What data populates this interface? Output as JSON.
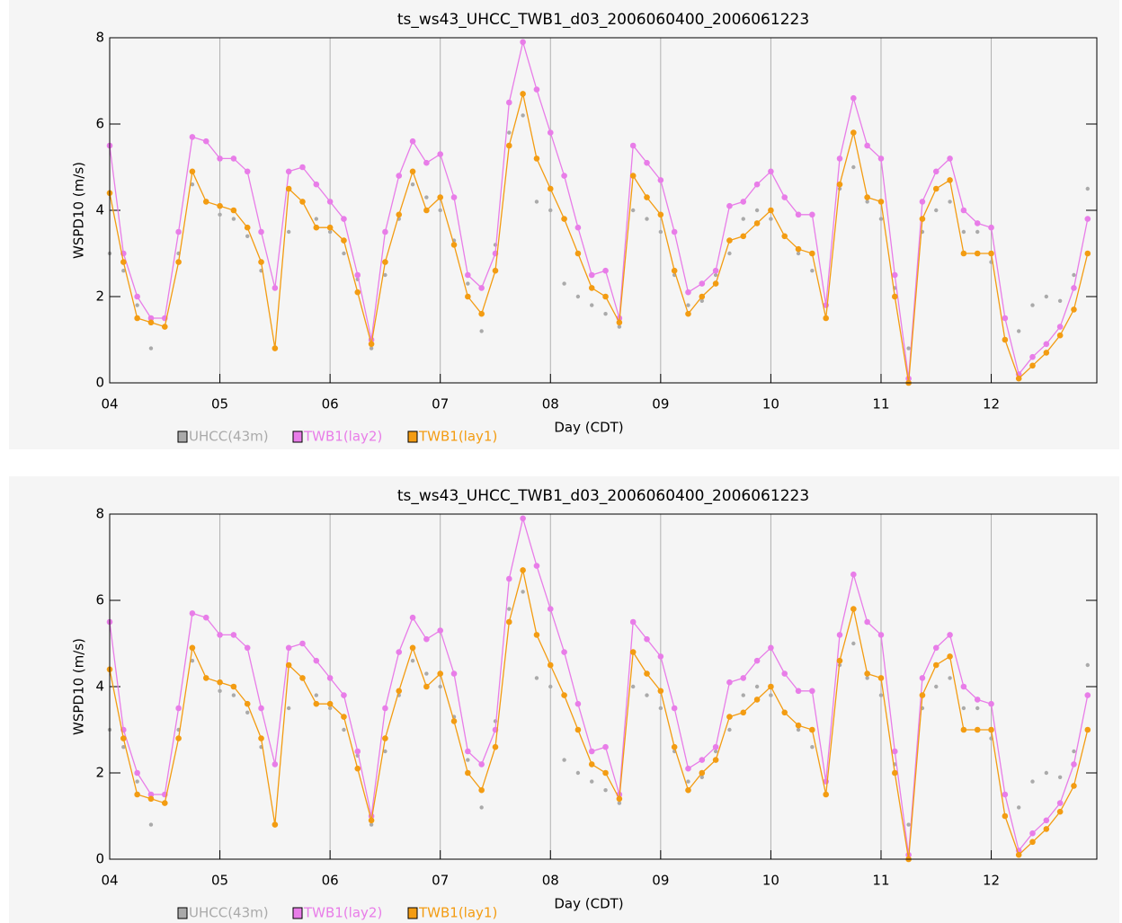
{
  "chart_data": [
    {
      "type": "line",
      "title": "ts_ws43_UHCC_TWB1_d03_2006060400_2006061223",
      "xlabel": "Day (CDT)",
      "ylabel": "WSPD10 (m/s)",
      "xlim": [
        4,
        12.9583
      ],
      "ylim": [
        0,
        8
      ],
      "xticks": [
        {
          "value": 4,
          "label": "04"
        },
        {
          "value": 5,
          "label": "05"
        },
        {
          "value": 6,
          "label": "06"
        },
        {
          "value": 7,
          "label": "07"
        },
        {
          "value": 8,
          "label": "08"
        },
        {
          "value": 9,
          "label": "09"
        },
        {
          "value": 10,
          "label": "10"
        },
        {
          "value": 11,
          "label": "11"
        },
        {
          "value": 12,
          "label": "12"
        }
      ],
      "yticks": [
        0,
        2,
        4,
        6,
        8
      ],
      "grid": "x",
      "x": [
        4,
        4.125,
        4.25,
        4.375,
        4.5,
        4.625,
        4.75,
        4.875,
        5,
        5.125,
        5.25,
        5.375,
        5.5,
        5.625,
        5.75,
        5.875,
        6,
        6.125,
        6.25,
        6.375,
        6.5,
        6.625,
        6.75,
        6.875,
        7,
        7.125,
        7.25,
        7.375,
        7.5,
        7.625,
        7.75,
        7.875,
        8,
        8.125,
        8.25,
        8.375,
        8.5,
        8.625,
        8.75,
        8.875,
        9,
        9.125,
        9.25,
        9.375,
        9.5,
        9.625,
        9.75,
        9.875,
        10,
        10.125,
        10.25,
        10.375,
        10.5,
        10.625,
        10.75,
        10.875,
        11,
        11.125,
        11.25,
        11.375,
        11.5,
        11.625,
        11.75,
        11.875,
        12,
        12.125,
        12.25,
        12.375,
        12.5,
        12.625,
        12.75,
        12.875
      ],
      "series": [
        {
          "name": "UHCC(43m)",
          "color": "#aaaaaa",
          "mode": "markers",
          "values": [
            3.0,
            2.6,
            1.8,
            0.8,
            1.5,
            3.0,
            4.6,
            4.2,
            3.9,
            3.8,
            3.4,
            2.6,
            0.8,
            3.5,
            4.2,
            3.8,
            3.5,
            3.0,
            2.4,
            0.8,
            2.5,
            3.8,
            4.6,
            4.3,
            4.0,
            3.3,
            2.3,
            1.2,
            3.2,
            5.8,
            6.2,
            4.2,
            4.0,
            2.3,
            2.0,
            1.8,
            1.6,
            1.3,
            4.0,
            3.8,
            3.5,
            2.5,
            1.8,
            1.9,
            2.5,
            3.0,
            3.8,
            4.0,
            3.8,
            3.4,
            3.0,
            2.6,
            1.5,
            4.5,
            5.0,
            4.2,
            3.8,
            2.2,
            0.8,
            3.5,
            4.0,
            4.2,
            3.5,
            3.5,
            2.8,
            1.5,
            1.2,
            1.8,
            2.0,
            1.9,
            2.5,
            4.5
          ]
        },
        {
          "name": "TWB1(lay2)",
          "color": "#e87de8",
          "mode": "lines+markers",
          "values": [
            5.5,
            3.0,
            2.0,
            1.5,
            1.5,
            3.5,
            5.7,
            5.6,
            5.2,
            5.2,
            4.9,
            3.5,
            2.2,
            4.9,
            5.0,
            4.6,
            4.2,
            3.8,
            2.5,
            1.0,
            3.5,
            4.8,
            5.6,
            5.1,
            5.3,
            4.3,
            2.5,
            2.2,
            3.0,
            6.5,
            7.9,
            6.8,
            5.8,
            4.8,
            3.6,
            2.5,
            2.6,
            1.5,
            5.5,
            5.1,
            4.7,
            3.5,
            2.1,
            2.3,
            2.6,
            4.1,
            4.2,
            4.6,
            4.9,
            4.3,
            3.9,
            3.9,
            1.8,
            5.2,
            6.6,
            5.5,
            5.2,
            2.5,
            0.1,
            4.2,
            4.9,
            5.2,
            4.0,
            3.7,
            3.6,
            1.5,
            0.2,
            0.6,
            0.9,
            1.3,
            2.2,
            3.8
          ]
        },
        {
          "name": "TWB1(lay1)",
          "color": "#f39c12",
          "mode": "lines+markers",
          "values": [
            4.4,
            2.8,
            1.5,
            1.4,
            1.3,
            2.8,
            4.9,
            4.2,
            4.1,
            4.0,
            3.6,
            2.8,
            0.8,
            4.5,
            4.2,
            3.6,
            3.6,
            3.3,
            2.1,
            0.9,
            2.8,
            3.9,
            4.9,
            4.0,
            4.3,
            3.2,
            2.0,
            1.6,
            2.6,
            5.5,
            6.7,
            5.2,
            4.5,
            3.8,
            3.0,
            2.2,
            2.0,
            1.4,
            4.8,
            4.3,
            3.9,
            2.6,
            1.6,
            2.0,
            2.3,
            3.3,
            3.4,
            3.7,
            4.0,
            3.4,
            3.1,
            3.0,
            1.5,
            4.6,
            5.8,
            4.3,
            4.2,
            2.0,
            0.0,
            3.8,
            4.5,
            4.7,
            3.0,
            3.0,
            3.0,
            1.0,
            0.1,
            0.4,
            0.7,
            1.1,
            1.7,
            3.0
          ]
        }
      ]
    },
    {
      "type": "line",
      "title": "ts_ws43_UHCC_TWB1_d03_2006060400_2006061223",
      "xlabel": "Day (CDT)",
      "ylabel": "WSPD10 (m/s)",
      "xlim": [
        4,
        12.9583
      ],
      "ylim": [
        0,
        8
      ],
      "xticks": [
        {
          "value": 4,
          "label": "04"
        },
        {
          "value": 5,
          "label": "05"
        },
        {
          "value": 6,
          "label": "06"
        },
        {
          "value": 7,
          "label": "07"
        },
        {
          "value": 8,
          "label": "08"
        },
        {
          "value": 9,
          "label": "09"
        },
        {
          "value": 10,
          "label": "10"
        },
        {
          "value": 11,
          "label": "11"
        },
        {
          "value": 12,
          "label": "12"
        }
      ],
      "yticks": [
        0,
        2,
        4,
        6,
        8
      ],
      "grid": "x",
      "x": [
        4,
        4.125,
        4.25,
        4.375,
        4.5,
        4.625,
        4.75,
        4.875,
        5,
        5.125,
        5.25,
        5.375,
        5.5,
        5.625,
        5.75,
        5.875,
        6,
        6.125,
        6.25,
        6.375,
        6.5,
        6.625,
        6.75,
        6.875,
        7,
        7.125,
        7.25,
        7.375,
        7.5,
        7.625,
        7.75,
        7.875,
        8,
        8.125,
        8.25,
        8.375,
        8.5,
        8.625,
        8.75,
        8.875,
        9,
        9.125,
        9.25,
        9.375,
        9.5,
        9.625,
        9.75,
        9.875,
        10,
        10.125,
        10.25,
        10.375,
        10.5,
        10.625,
        10.75,
        10.875,
        11,
        11.125,
        11.25,
        11.375,
        11.5,
        11.625,
        11.75,
        11.875,
        12,
        12.125,
        12.25,
        12.375,
        12.5,
        12.625,
        12.75,
        12.875
      ],
      "series": [
        {
          "name": "UHCC(43m)",
          "color": "#aaaaaa",
          "mode": "markers",
          "values": [
            3.0,
            2.6,
            1.8,
            0.8,
            1.5,
            3.0,
            4.6,
            4.2,
            3.9,
            3.8,
            3.4,
            2.6,
            0.8,
            3.5,
            4.2,
            3.8,
            3.5,
            3.0,
            2.4,
            0.8,
            2.5,
            3.8,
            4.6,
            4.3,
            4.0,
            3.3,
            2.3,
            1.2,
            3.2,
            5.8,
            6.2,
            4.2,
            4.0,
            2.3,
            2.0,
            1.8,
            1.6,
            1.3,
            4.0,
            3.8,
            3.5,
            2.5,
            1.8,
            1.9,
            2.5,
            3.0,
            3.8,
            4.0,
            3.8,
            3.4,
            3.0,
            2.6,
            1.5,
            4.5,
            5.0,
            4.2,
            3.8,
            2.2,
            0.8,
            3.5,
            4.0,
            4.2,
            3.5,
            3.5,
            2.8,
            1.5,
            1.2,
            1.8,
            2.0,
            1.9,
            2.5,
            4.5
          ]
        },
        {
          "name": "TWB1(lay2)",
          "color": "#e87de8",
          "mode": "lines+markers",
          "values": [
            5.5,
            3.0,
            2.0,
            1.5,
            1.5,
            3.5,
            5.7,
            5.6,
            5.2,
            5.2,
            4.9,
            3.5,
            2.2,
            4.9,
            5.0,
            4.6,
            4.2,
            3.8,
            2.5,
            1.0,
            3.5,
            4.8,
            5.6,
            5.1,
            5.3,
            4.3,
            2.5,
            2.2,
            3.0,
            6.5,
            7.9,
            6.8,
            5.8,
            4.8,
            3.6,
            2.5,
            2.6,
            1.5,
            5.5,
            5.1,
            4.7,
            3.5,
            2.1,
            2.3,
            2.6,
            4.1,
            4.2,
            4.6,
            4.9,
            4.3,
            3.9,
            3.9,
            1.8,
            5.2,
            6.6,
            5.5,
            5.2,
            2.5,
            0.1,
            4.2,
            4.9,
            5.2,
            4.0,
            3.7,
            3.6,
            1.5,
            0.2,
            0.6,
            0.9,
            1.3,
            2.2,
            3.8
          ]
        },
        {
          "name": "TWB1(lay1)",
          "color": "#f39c12",
          "mode": "lines+markers",
          "values": [
            4.4,
            2.8,
            1.5,
            1.4,
            1.3,
            2.8,
            4.9,
            4.2,
            4.1,
            4.0,
            3.6,
            2.8,
            0.8,
            4.5,
            4.2,
            3.6,
            3.6,
            3.3,
            2.1,
            0.9,
            2.8,
            3.9,
            4.9,
            4.0,
            4.3,
            3.2,
            2.0,
            1.6,
            2.6,
            5.5,
            6.7,
            5.2,
            4.5,
            3.8,
            3.0,
            2.2,
            2.0,
            1.4,
            4.8,
            4.3,
            3.9,
            2.6,
            1.6,
            2.0,
            2.3,
            3.3,
            3.4,
            3.7,
            4.0,
            3.4,
            3.1,
            3.0,
            1.5,
            4.6,
            5.8,
            4.3,
            4.2,
            2.0,
            0.0,
            3.8,
            4.5,
            4.7,
            3.0,
            3.0,
            3.0,
            1.0,
            0.1,
            0.4,
            0.7,
            1.1,
            1.7,
            3.0
          ]
        }
      ]
    }
  ]
}
